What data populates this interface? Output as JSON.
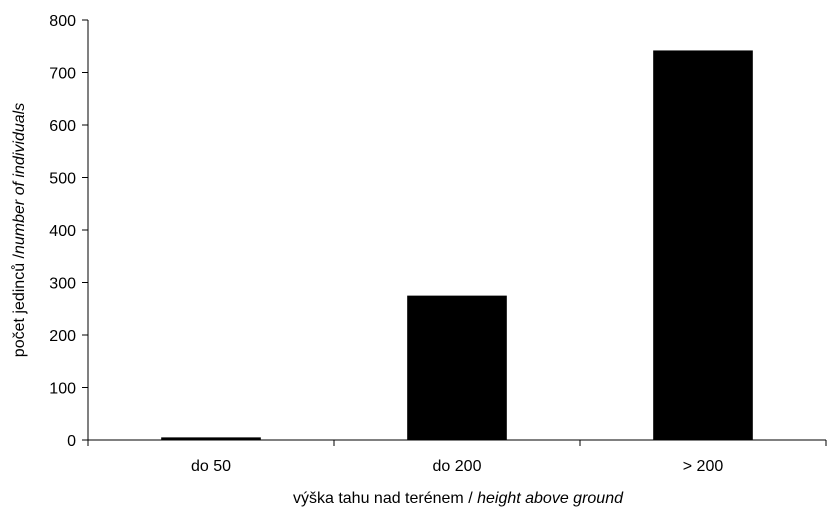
{
  "chart_data": {
    "type": "bar",
    "categories": [
      "do 50",
      "do 200",
      "> 200"
    ],
    "values": [
      5,
      275,
      742
    ],
    "ylim": [
      0,
      800
    ],
    "yticks": [
      0,
      100,
      200,
      300,
      400,
      500,
      600,
      700,
      800
    ],
    "xlabel_plain": "výška tahu nad terénem / ",
    "xlabel_italic": "height above ground",
    "ylabel_plain": "počet jedinců /",
    "ylabel_italic": "number of individuals",
    "bar_color": "#000000",
    "grid": false,
    "legend": "none"
  }
}
